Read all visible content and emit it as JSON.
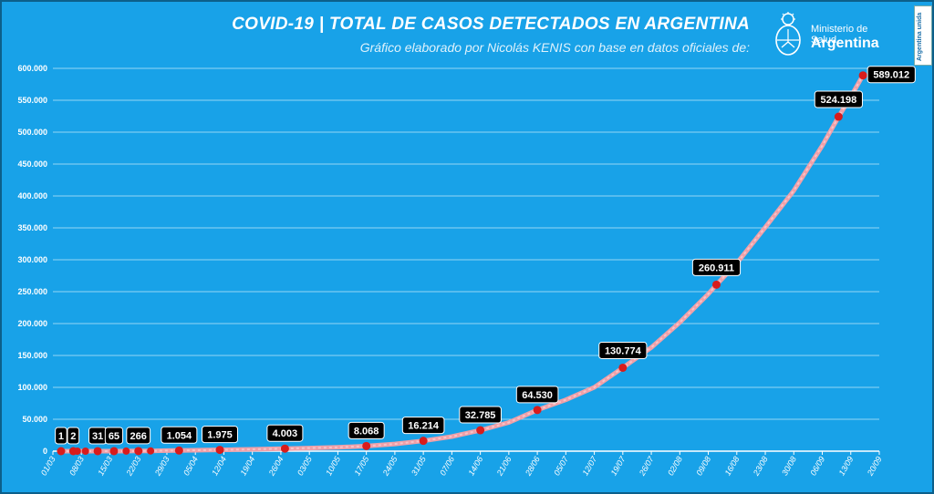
{
  "title": "COVID-19  |  TOTAL DE CASOS DETECTADOS EN ARGENTINA",
  "subtitle": "Gráfico elaborado por Nicolás KENIS con base en datos oficiales de:",
  "logo": {
    "ministry": "Ministerio de Salud",
    "country": "Argentina",
    "icon": "sun-shield-icon"
  },
  "badge": "Argentina unida",
  "colors": {
    "background": "#18a2e8",
    "line": "#f0a0a8",
    "marker": "#d81c1c",
    "label_bg": "#000000"
  },
  "chart_data": {
    "type": "line",
    "title": "COVID-19  |  TOTAL DE CASOS DETECTADOS EN ARGENTINA",
    "xlabel": "",
    "ylabel": "",
    "ylim": [
      0,
      600000
    ],
    "xlim": [
      "01/03",
      "20/09"
    ],
    "grid": true,
    "y_ticks": [
      "0",
      "50.000",
      "100.000",
      "150.000",
      "200.000",
      "250.000",
      "300.000",
      "350.000",
      "400.000",
      "450.000",
      "500.000",
      "550.000",
      "600.000"
    ],
    "x_ticks": [
      "01/03",
      "08/03",
      "15/03",
      "22/03",
      "29/03",
      "05/04",
      "12/04",
      "19/04",
      "26/04",
      "03/05",
      "10/05",
      "17/05",
      "24/05",
      "31/05",
      "07/06",
      "14/06",
      "21/06",
      "28/06",
      "05/07",
      "12/07",
      "19/07",
      "26/07",
      "02/08",
      "09/08",
      "16/08",
      "23/08",
      "30/08",
      "06/09",
      "13/09",
      "20/09"
    ],
    "series": [
      {
        "points": [
          [
            "03/03",
            1
          ],
          [
            "06/03",
            2
          ],
          [
            "07/03",
            2
          ],
          [
            "09/03",
            12
          ],
          [
            "12/03",
            31
          ],
          [
            "16/03",
            65
          ],
          [
            "19/03",
            128
          ],
          [
            "22/03",
            266
          ],
          [
            "25/03",
            387
          ],
          [
            "29/03",
            820
          ],
          [
            "01/04",
            1054
          ],
          [
            "05/04",
            1451
          ],
          [
            "08/04",
            1715
          ],
          [
            "11/04",
            1975
          ],
          [
            "15/04",
            2443
          ],
          [
            "20/04",
            3031
          ],
          [
            "25/04",
            3780
          ],
          [
            "27/04",
            4003
          ],
          [
            "03/05",
            4856
          ],
          [
            "10/05",
            6034
          ],
          [
            "17/05",
            8068
          ],
          [
            "24/05",
            11353
          ],
          [
            "31/05",
            16214
          ],
          [
            "07/06",
            22794
          ],
          [
            "14/06",
            32785
          ],
          [
            "21/06",
            44931
          ],
          [
            "28/06",
            64530
          ],
          [
            "05/07",
            80447
          ],
          [
            "12/07",
            100166
          ],
          [
            "19/07",
            130774
          ],
          [
            "26/07",
            162526
          ],
          [
            "02/08",
            201919
          ],
          [
            "09/08",
            246499
          ],
          [
            "11/08",
            260911
          ],
          [
            "16/08",
            294569
          ],
          [
            "23/08",
            350867
          ],
          [
            "30/08",
            408426
          ],
          [
            "06/09",
            478792
          ],
          [
            "10/09",
            524198
          ],
          [
            "13/09",
            555537
          ],
          [
            "16/09",
            589012
          ]
        ]
      }
    ],
    "annotations": [
      {
        "x": "03/03",
        "y": 1,
        "label": "1"
      },
      {
        "x": "06/03",
        "y": 2,
        "label": "2"
      },
      {
        "x": "12/03",
        "y": 31,
        "label": "31"
      },
      {
        "x": "16/03",
        "y": 65,
        "label": "65"
      },
      {
        "x": "22/03",
        "y": 266,
        "label": "266"
      },
      {
        "x": "01/04",
        "y": 1054,
        "label": "1.054"
      },
      {
        "x": "11/04",
        "y": 1975,
        "label": "1.975"
      },
      {
        "x": "27/04",
        "y": 4003,
        "label": "4.003"
      },
      {
        "x": "17/05",
        "y": 8068,
        "label": "8.068"
      },
      {
        "x": "31/05",
        "y": 16214,
        "label": "16.214"
      },
      {
        "x": "14/06",
        "y": 32785,
        "label": "32.785"
      },
      {
        "x": "28/06",
        "y": 64530,
        "label": "64.530"
      },
      {
        "x": "19/07",
        "y": 130774,
        "label": "130.774"
      },
      {
        "x": "11/08",
        "y": 260911,
        "label": "260.911"
      },
      {
        "x": "10/09",
        "y": 524198,
        "label": "524.198"
      },
      {
        "x": "16/09",
        "y": 589012,
        "label": "589.012"
      }
    ],
    "extra_markers": [
      [
        "07/03",
        2
      ],
      [
        "09/03",
        12
      ],
      [
        "19/03",
        128
      ],
      [
        "25/03",
        387
      ]
    ]
  }
}
